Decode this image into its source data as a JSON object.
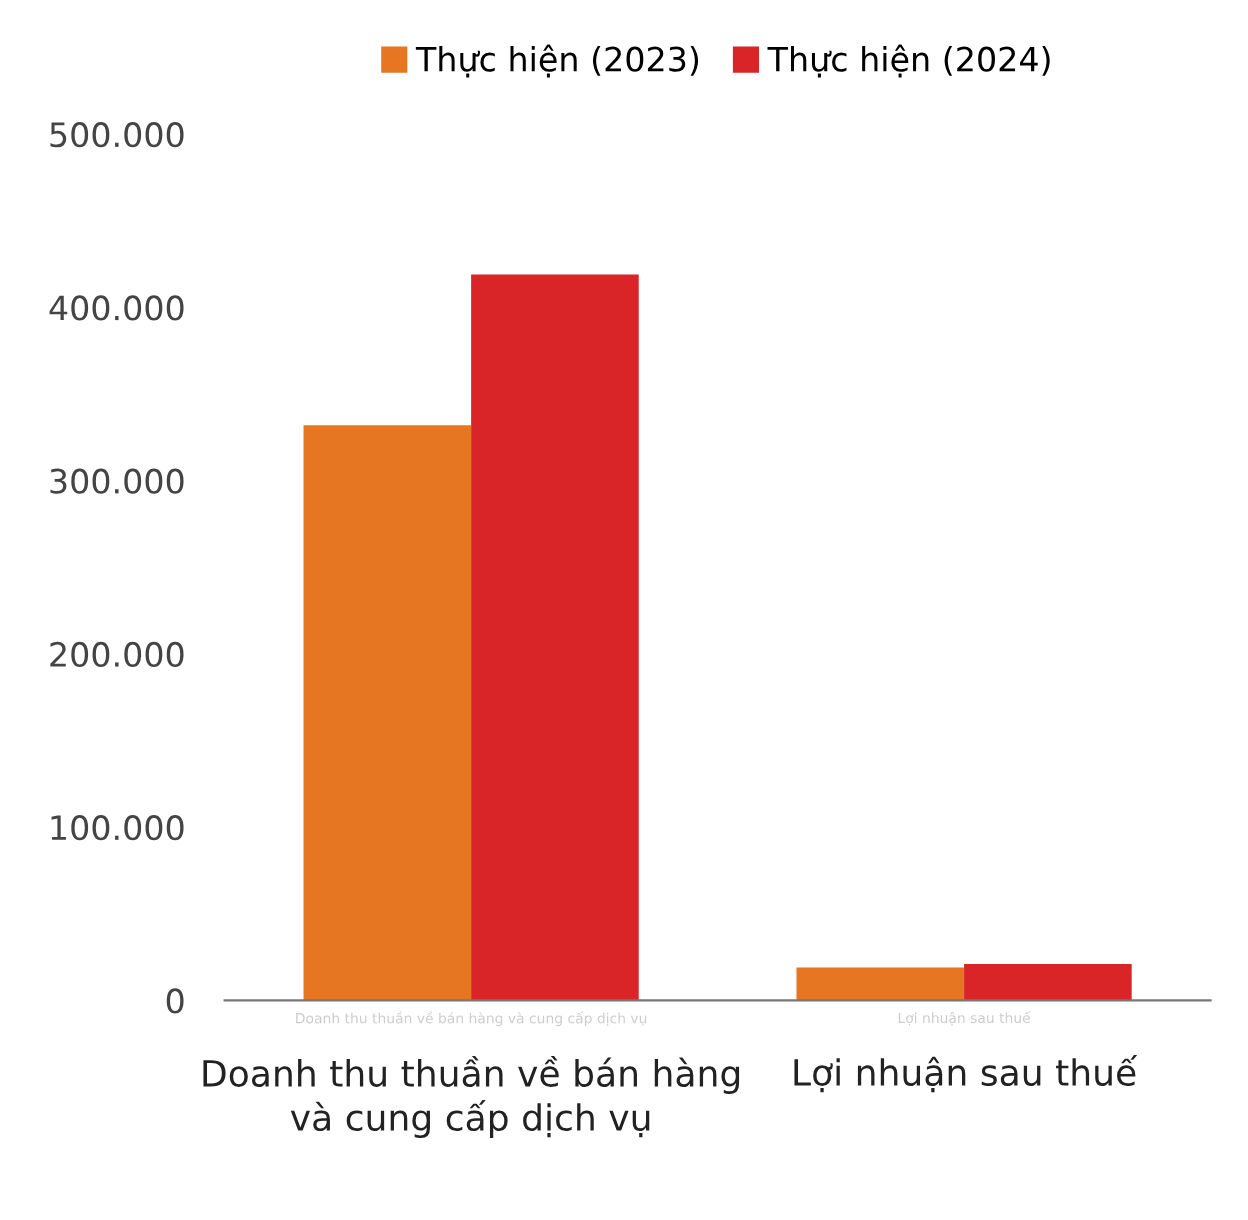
{
  "chart_data": {
    "type": "bar",
    "categories": [
      "Doanh thu thuần về bán hàng và cung cấp dịch vụ",
      "Lợi nhuận sau thuế"
    ],
    "series": [
      {
        "name": "Thực hiện (2023)",
        "color": "#e67622",
        "values": [
          332000,
          19000
        ]
      },
      {
        "name": "Thực hiện (2024)",
        "color": "#da2528",
        "values": [
          419000,
          21000
        ]
      }
    ],
    "ylim": [
      0,
      500000
    ],
    "yticks": [
      {
        "value": 0,
        "label": "0"
      },
      {
        "value": 100000,
        "label": "100.000"
      },
      {
        "value": 200000,
        "label": "200.000"
      },
      {
        "value": 300000,
        "label": "300.000"
      },
      {
        "value": 400000,
        "label": "400.000"
      },
      {
        "value": 500000,
        "label": "500.000"
      }
    ],
    "annotations": [
      "Doanh thu thuần về bán hàng và cung cấp dịch vụ",
      "Lợi nhuận sau thuế"
    ],
    "grid": false,
    "legend": "top"
  }
}
